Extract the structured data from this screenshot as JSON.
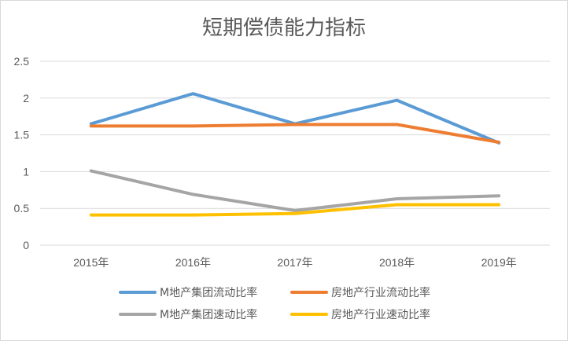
{
  "chart_data": {
    "type": "line",
    "title": "短期偿债能力指标",
    "categories": [
      "2015年",
      "2016年",
      "2017年",
      "2018年",
      "2019年"
    ],
    "ylim": [
      0,
      2.5
    ],
    "yticks": [
      "0",
      "0.5",
      "1",
      "1.5",
      "2",
      "2.5"
    ],
    "grid": true,
    "legend_position": "bottom",
    "series": [
      {
        "name": "M地产集团流动比率",
        "color": "#5B9BD5",
        "values": [
          1.65,
          2.06,
          1.65,
          1.97,
          1.39
        ]
      },
      {
        "name": "房地产行业流动比率",
        "color": "#ED7D31",
        "values": [
          1.62,
          1.62,
          1.64,
          1.64,
          1.4
        ]
      },
      {
        "name": "M地产集团速动比率",
        "color": "#A5A5A5",
        "values": [
          1.01,
          0.69,
          0.47,
          0.63,
          0.67
        ]
      },
      {
        "name": "房地产行业速动比率",
        "color": "#FFC000",
        "values": [
          0.41,
          0.41,
          0.43,
          0.55,
          0.55
        ]
      }
    ]
  }
}
